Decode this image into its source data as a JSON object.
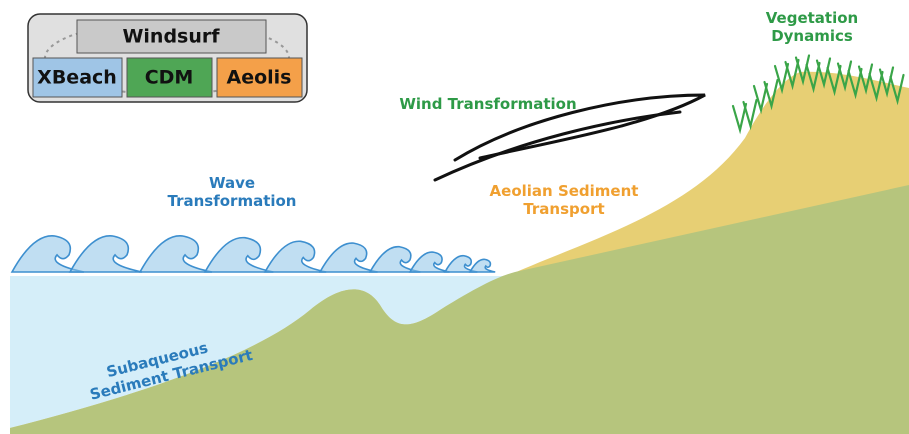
{
  "legend": {
    "title": "Windsurf",
    "modules": [
      "XBeach",
      "CDM",
      "Aeolis"
    ]
  },
  "labels": {
    "wind": "Wind Transformation",
    "vegetation": [
      "Vegetation",
      "Dynamics"
    ],
    "wave": [
      "Wave",
      "Transformation"
    ],
    "aeolian": [
      "Aeolian Sediment",
      "Transport"
    ],
    "subaqueous": [
      "Subaqueous",
      "Sediment Transport"
    ]
  }
}
